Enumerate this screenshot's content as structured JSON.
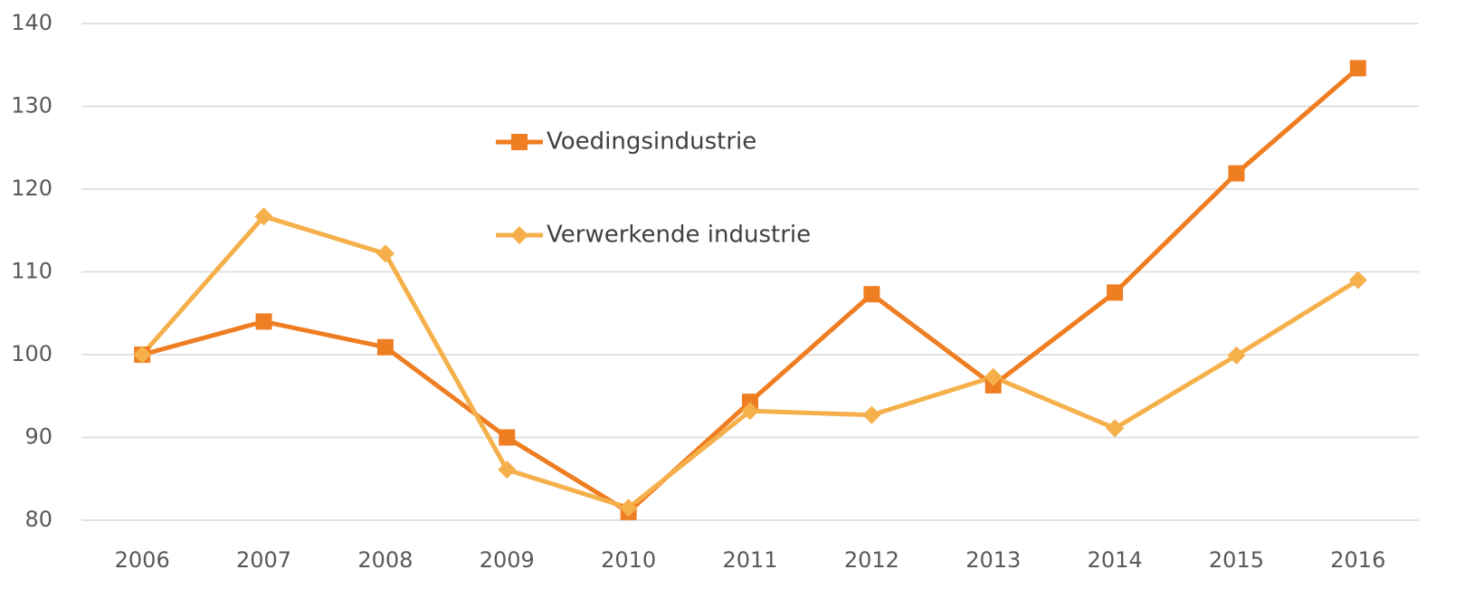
{
  "chart_data": {
    "type": "line",
    "categories": [
      "2006",
      "2007",
      "2008",
      "2009",
      "2010",
      "2011",
      "2012",
      "2013",
      "2014",
      "2015",
      "2016"
    ],
    "series": [
      {
        "name": "Voedingsindustrie",
        "color": "#ef7d22",
        "marker": "square",
        "values": [
          100,
          104,
          100.9,
          90,
          81,
          94.3,
          107.3,
          96.3,
          107.5,
          121.9,
          134.6
        ]
      },
      {
        "name": "Verwerkende industrie",
        "color": "#f5b04b",
        "marker": "diamond",
        "values": [
          100,
          116.7,
          112.2,
          86.1,
          81.5,
          93.2,
          92.7,
          97.3,
          91.1,
          99.9,
          109
        ]
      }
    ],
    "ylim": [
      80,
      140
    ],
    "yticks": [
      80,
      90,
      100,
      110,
      120,
      130,
      140
    ],
    "grid": true,
    "legend": "top-center"
  }
}
